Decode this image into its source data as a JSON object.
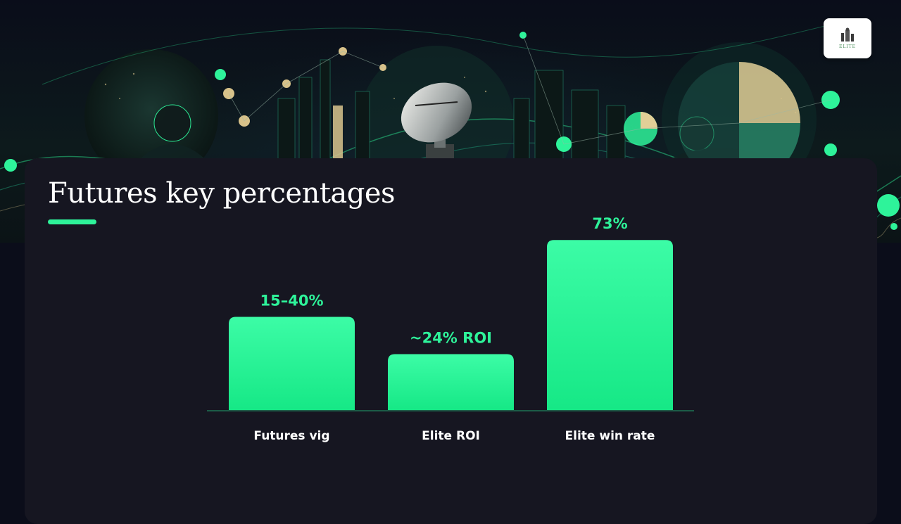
{
  "slide": {
    "title": "Futures key percentages",
    "logo_text": "ELITE"
  },
  "colors": {
    "accent": "#2ef39a",
    "card": "#161621",
    "background": "#0b0d1a"
  },
  "chart_data": {
    "type": "bar",
    "categories": [
      "Futures vig",
      "Elite ROI",
      "Elite win rate"
    ],
    "values": [
      40,
      24,
      73
    ],
    "data_labels": [
      "15–40%",
      "~24% ROI",
      "73%"
    ],
    "ylim": [
      0,
      80
    ],
    "grid": false,
    "legend": "none",
    "title": "",
    "xlabel": "",
    "ylabel": ""
  }
}
